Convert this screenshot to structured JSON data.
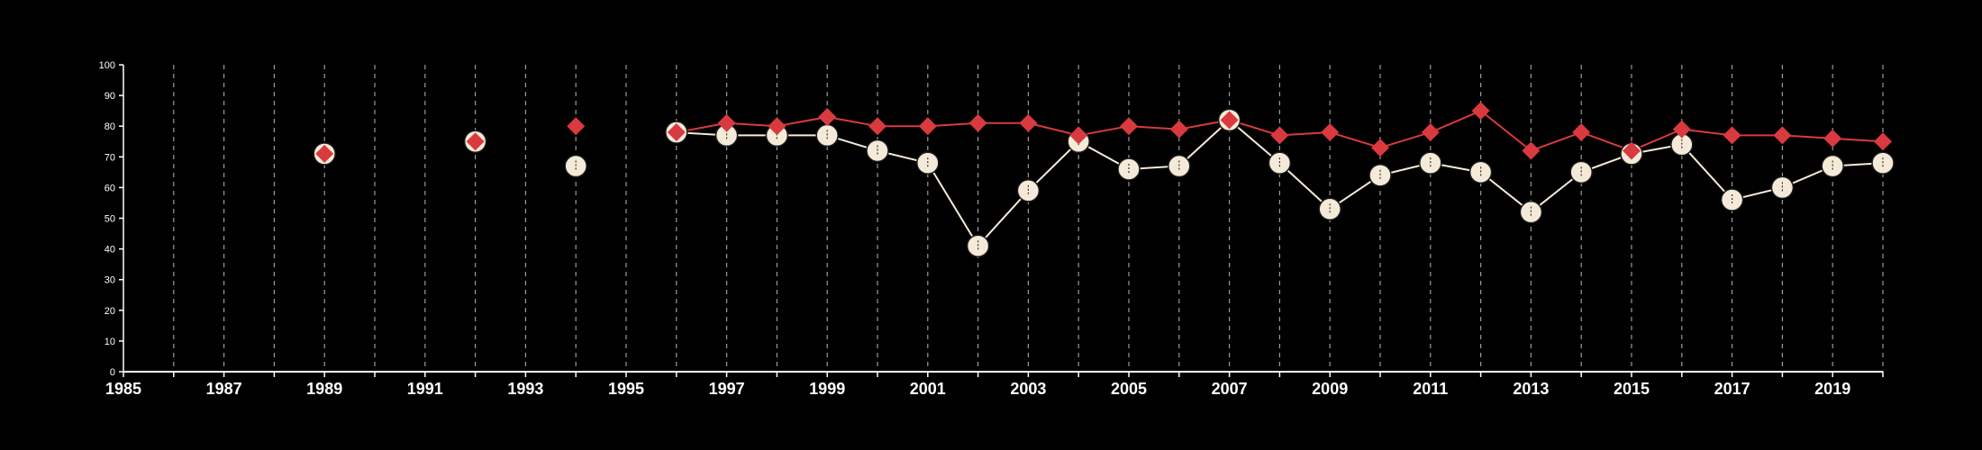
{
  "chart_data": {
    "type": "line",
    "x_range": [
      1985,
      2020
    ],
    "ylim": [
      0,
      100
    ],
    "y_ticks": [
      0,
      10,
      20,
      30,
      40,
      50,
      60,
      70,
      80,
      90,
      100
    ],
    "x_tick_labels": [
      1985,
      1987,
      1989,
      1991,
      1993,
      1995,
      1997,
      1999,
      2001,
      2003,
      2005,
      2007,
      2009,
      2011,
      2013,
      2015,
      2017,
      2019
    ],
    "grid": "vertical dashed lines at every year",
    "series": [
      {
        "color": "#d93a3f",
        "marker": "diamond",
        "points": [
          {
            "x": 1989,
            "y": 71
          },
          {
            "x": 1992,
            "y": 75
          },
          {
            "x": 1994,
            "y": 80
          },
          {
            "x": 1996,
            "y": 78
          },
          {
            "x": 1997,
            "y": 81
          },
          {
            "x": 1998,
            "y": 80
          },
          {
            "x": 1999,
            "y": 83
          },
          {
            "x": 2000,
            "y": 80
          },
          {
            "x": 2001,
            "y": 80
          },
          {
            "x": 2002,
            "y": 81
          },
          {
            "x": 2003,
            "y": 81
          },
          {
            "x": 2004,
            "y": 77
          },
          {
            "x": 2005,
            "y": 80
          },
          {
            "x": 2006,
            "y": 79
          },
          {
            "x": 2007,
            "y": 82
          },
          {
            "x": 2008,
            "y": 77
          },
          {
            "x": 2009,
            "y": 78
          },
          {
            "x": 2010,
            "y": 73
          },
          {
            "x": 2011,
            "y": 78
          },
          {
            "x": 2012,
            "y": 85
          },
          {
            "x": 2013,
            "y": 72
          },
          {
            "x": 2014,
            "y": 78
          },
          {
            "x": 2015,
            "y": 72
          },
          {
            "x": 2016,
            "y": 79
          },
          {
            "x": 2017,
            "y": 77
          },
          {
            "x": 2018,
            "y": 77
          },
          {
            "x": 2019,
            "y": 76
          },
          {
            "x": 2020,
            "y": 75
          }
        ]
      },
      {
        "color": "#f5ead8",
        "marker": "circle",
        "points": [
          {
            "x": 1989,
            "y": 71
          },
          {
            "x": 1992,
            "y": 75
          },
          {
            "x": 1994,
            "y": 67
          },
          {
            "x": 1996,
            "y": 78
          },
          {
            "x": 1997,
            "y": 77
          },
          {
            "x": 1998,
            "y": 77
          },
          {
            "x": 1999,
            "y": 77
          },
          {
            "x": 2000,
            "y": 72
          },
          {
            "x": 2001,
            "y": 68
          },
          {
            "x": 2002,
            "y": 41
          },
          {
            "x": 2003,
            "y": 59
          },
          {
            "x": 2004,
            "y": 75
          },
          {
            "x": 2005,
            "y": 66
          },
          {
            "x": 2006,
            "y": 67
          },
          {
            "x": 2007,
            "y": 82
          },
          {
            "x": 2008,
            "y": 68
          },
          {
            "x": 2009,
            "y": 53
          },
          {
            "x": 2010,
            "y": 64
          },
          {
            "x": 2011,
            "y": 68
          },
          {
            "x": 2012,
            "y": 65
          },
          {
            "x": 2013,
            "y": 52
          },
          {
            "x": 2014,
            "y": 65
          },
          {
            "x": 2015,
            "y": 71
          },
          {
            "x": 2016,
            "y": 74
          },
          {
            "x": 2017,
            "y": 56
          },
          {
            "x": 2018,
            "y": 60
          },
          {
            "x": 2019,
            "y": 67
          },
          {
            "x": 2020,
            "y": 68
          }
        ]
      }
    ]
  }
}
